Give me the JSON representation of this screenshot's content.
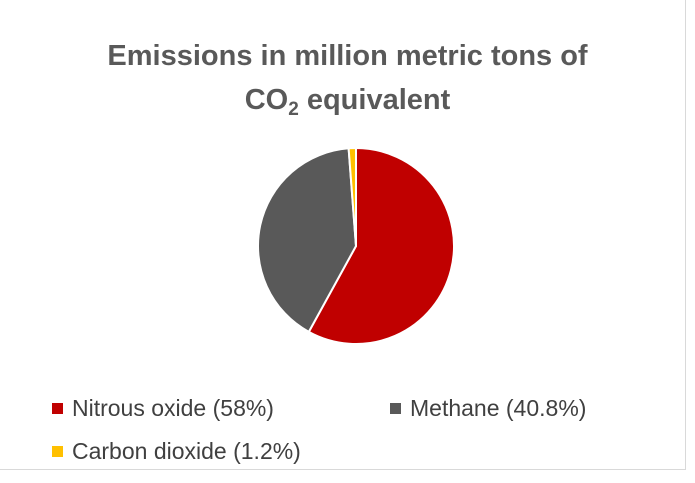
{
  "chart_data": {
    "type": "pie",
    "title_main": "Emissions in million metric tons of",
    "title_co": "CO",
    "title_sub": "2",
    "title_rest": " equivalent",
    "slices": [
      {
        "name": "Nitrous oxide",
        "percent": 58,
        "color": "#c00000",
        "label": "Nitrous oxide (58%)"
      },
      {
        "name": "Methane",
        "percent": 40.8,
        "color": "#595959",
        "label": "Methane (40.8%)"
      },
      {
        "name": "Carbon dioxide",
        "percent": 1.2,
        "color": "#ffc000",
        "label": "Carbon dioxide (1.2%)"
      }
    ],
    "legend_position": "bottom"
  }
}
